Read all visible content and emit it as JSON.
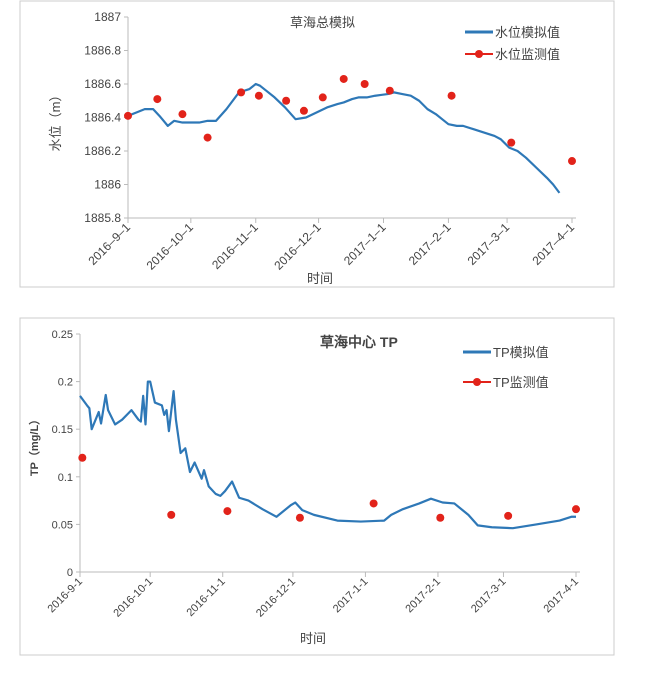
{
  "chart_data": [
    {
      "type": "line",
      "title": "草海总模拟",
      "xlabel": "时间",
      "ylabel": "水位（m）",
      "ylim": [
        1885.8,
        1887
      ],
      "yticks": [
        "1885.8",
        "1886",
        "1886.2",
        "1886.4",
        "1886.6",
        "1886.8",
        "1887"
      ],
      "xticks": [
        {
          "label": "2016–9–1",
          "day": 0
        },
        {
          "label": "2016–10–1",
          "day": 30
        },
        {
          "label": "2016–11–1",
          "day": 61
        },
        {
          "label": "2016–12–1",
          "day": 91
        },
        {
          "label": "2017–1–1",
          "day": 122
        },
        {
          "label": "2017–2–1",
          "day": 153
        },
        {
          "label": "2017–3–1",
          "day": 181
        },
        {
          "label": "2017–4–1",
          "day": 212
        }
      ],
      "legend": {
        "position": "top-right",
        "entries": [
          "水位模拟值",
          "水位监测值"
        ]
      },
      "series": [
        {
          "name": "水位模拟值",
          "type": "line",
          "color": "#2e78b7",
          "x": [
            0,
            4,
            8,
            12,
            15,
            17,
            19,
            22,
            26,
            30,
            34,
            38,
            42,
            47,
            53,
            58,
            61,
            63,
            66,
            70,
            75,
            80,
            85,
            90,
            95,
            100,
            103,
            107,
            110,
            114,
            118,
            124,
            127,
            131,
            135,
            139,
            143,
            147,
            150,
            153,
            157,
            160,
            165,
            170,
            175,
            178,
            182,
            186,
            190,
            195,
            200,
            203,
            206
          ],
          "y": [
            1886.41,
            1886.43,
            1886.45,
            1886.45,
            1886.41,
            1886.38,
            1886.35,
            1886.38,
            1886.37,
            1886.37,
            1886.37,
            1886.38,
            1886.38,
            1886.45,
            1886.55,
            1886.57,
            1886.6,
            1886.59,
            1886.56,
            1886.52,
            1886.46,
            1886.39,
            1886.4,
            1886.43,
            1886.46,
            1886.48,
            1886.49,
            1886.51,
            1886.52,
            1886.52,
            1886.53,
            1886.54,
            1886.55,
            1886.54,
            1886.53,
            1886.5,
            1886.45,
            1886.42,
            1886.39,
            1886.36,
            1886.35,
            1886.35,
            1886.33,
            1886.31,
            1886.29,
            1886.27,
            1886.22,
            1886.2,
            1886.16,
            1886.1,
            1886.04,
            1886.0,
            1885.95
          ]
        },
        {
          "name": "水位监测值",
          "type": "scatter",
          "color": "#e2231a",
          "x": [
            0,
            14,
            26,
            38,
            54,
            62.5,
            75.5,
            84,
            93,
            103,
            113,
            125,
            154.5,
            183,
            212
          ],
          "y": [
            1886.41,
            1886.51,
            1886.42,
            1886.28,
            1886.55,
            1886.53,
            1886.5,
            1886.44,
            1886.52,
            1886.63,
            1886.6,
            1886.56,
            1886.53,
            1886.25,
            1886.14
          ]
        }
      ]
    },
    {
      "type": "line",
      "title": "草海中心 TP",
      "xlabel": "时间",
      "ylabel": "TP（mg/L）",
      "ylim": [
        0,
        0.25
      ],
      "yticks": [
        "0",
        "0.05",
        "0.1",
        "0.15",
        "0.2",
        "0.25"
      ],
      "xticks": [
        {
          "label": "2016-9-1",
          "day": 0
        },
        {
          "label": "2016-10-1",
          "day": 30
        },
        {
          "label": "2016-11-1",
          "day": 61
        },
        {
          "label": "2016-12-1",
          "day": 91
        },
        {
          "label": "2017-1-1",
          "day": 122
        },
        {
          "label": "2017-2-1",
          "day": 153
        },
        {
          "label": "2017-3-1",
          "day": 181
        },
        {
          "label": "2017-4-1",
          "day": 212
        }
      ],
      "legend": {
        "position": "top-right",
        "entries": [
          "TP模拟值",
          "TP监测值"
        ]
      },
      "series": [
        {
          "name": "TP模拟值",
          "type": "line",
          "color": "#2e78b7",
          "x": [
            0,
            3,
            4,
            5,
            8,
            9,
            11,
            12,
            15,
            18,
            22,
            25,
            26,
            27,
            28,
            29,
            30,
            32,
            35,
            36,
            37,
            38,
            40,
            41,
            43,
            45,
            47,
            49,
            52,
            53,
            55,
            58,
            60,
            62,
            65,
            68,
            72,
            78,
            84,
            90,
            92,
            95,
            100,
            110,
            120,
            130,
            133,
            138,
            145,
            150,
            155,
            160,
            166,
            170,
            176,
            185,
            195,
            205,
            210,
            212
          ],
          "y": [
            0.185,
            0.175,
            0.172,
            0.15,
            0.168,
            0.156,
            0.186,
            0.17,
            0.155,
            0.16,
            0.17,
            0.16,
            0.158,
            0.185,
            0.155,
            0.2,
            0.2,
            0.178,
            0.175,
            0.165,
            0.17,
            0.148,
            0.19,
            0.16,
            0.125,
            0.13,
            0.105,
            0.115,
            0.098,
            0.107,
            0.09,
            0.082,
            0.08,
            0.085,
            0.095,
            0.078,
            0.075,
            0.066,
            0.058,
            0.07,
            0.073,
            0.065,
            0.06,
            0.054,
            0.053,
            0.054,
            0.06,
            0.066,
            0.072,
            0.077,
            0.073,
            0.072,
            0.06,
            0.049,
            0.047,
            0.046,
            0.05,
            0.054,
            0.058,
            0.058
          ]
        },
        {
          "name": "TP监测值",
          "type": "scatter",
          "color": "#e2231a",
          "x": [
            1,
            39,
            63,
            94,
            125.5,
            154,
            183,
            212
          ],
          "y": [
            0.12,
            0.06,
            0.064,
            0.057,
            0.072,
            0.057,
            0.059,
            0.066
          ]
        }
      ]
    }
  ]
}
